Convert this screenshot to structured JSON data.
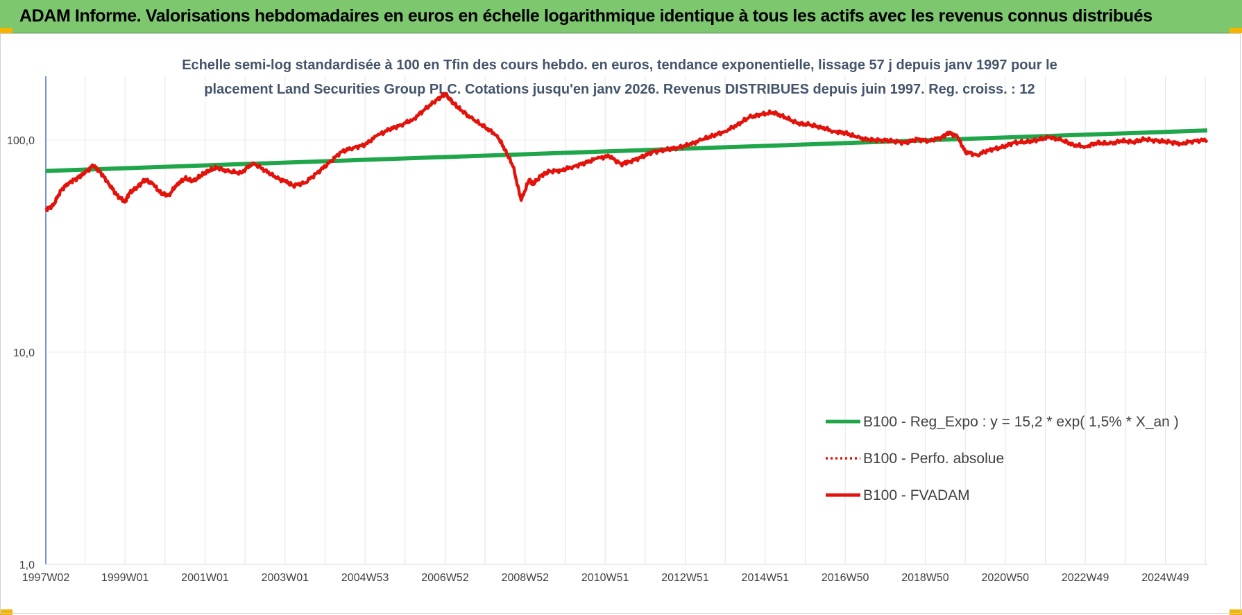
{
  "banner": {
    "title": "ADAM Informe. Valorisations hebdomadaires en euros en échelle logarithmique identique à tous les actifs avec les revenus connus distribués"
  },
  "colors": {
    "banner_bg": "#7dc76f",
    "corner_accent": "#f4b400",
    "trend_line": "#1fa64a",
    "series_line": "#e3120b",
    "subtitle": "#44546a"
  },
  "chart_data": {
    "type": "line",
    "title_lines": [
      "Echelle semi-log standardisée à 100 en Tfin des cours hebdo. en euros, tendance exponentielle, lissage 57 j depuis janv 1997 pour le",
      "placement Land Securities Group PLC. Cotations jusqu'en janv 2026. Revenus DISTRIBUES depuis juin 1997. Reg. croiss. : 12"
    ],
    "y_scale": "log",
    "ylim": [
      1,
      180
    ],
    "y_ticks": [
      {
        "value": 1,
        "label": "1,0"
      },
      {
        "value": 10,
        "label": "10,0"
      },
      {
        "value": 100,
        "label": "100,0"
      }
    ],
    "xlim": [
      1997.02,
      2026.05
    ],
    "x_ticks": [
      {
        "value": 1997.02,
        "label": "1997W02"
      },
      {
        "value": 1999.0,
        "label": "1999W01"
      },
      {
        "value": 2001.0,
        "label": "2001W01"
      },
      {
        "value": 2003.0,
        "label": "2003W01"
      },
      {
        "value": 2005.0,
        "label": "2004W53"
      },
      {
        "value": 2007.0,
        "label": "2006W52"
      },
      {
        "value": 2009.0,
        "label": "2008W52"
      },
      {
        "value": 2011.0,
        "label": "2010W51"
      },
      {
        "value": 2013.0,
        "label": "2012W51"
      },
      {
        "value": 2015.0,
        "label": "2014W51"
      },
      {
        "value": 2017.0,
        "label": "2016W50"
      },
      {
        "value": 2019.0,
        "label": "2018W50"
      },
      {
        "value": 2021.0,
        "label": "2020W50"
      },
      {
        "value": 2023.0,
        "label": "2022W49"
      },
      {
        "value": 2025.0,
        "label": "2024W49"
      }
    ],
    "grid": "vertical",
    "legend_position": "lower-right",
    "series": [
      {
        "name": "B100 - Reg_Expo : y = 15,2 * exp( 1,5% *  X_an )",
        "style": "solid-thick",
        "color": "#1fa64a",
        "x": [
          1997.02,
          2026.05
        ],
        "y": [
          71.5,
          111
        ]
      },
      {
        "name": "B100 - Perfo. absolue",
        "style": "dotted",
        "color": "#e3120b",
        "x": [],
        "y": []
      },
      {
        "name": "B100 - FVADAM",
        "style": "solid-thick",
        "color": "#e3120b",
        "x": [
          1997.02,
          1997.2,
          1997.4,
          1997.6,
          1997.8,
          1998.0,
          1998.2,
          1998.4,
          1998.6,
          1998.8,
          1999.0,
          1999.1,
          1999.3,
          1999.5,
          1999.7,
          1999.9,
          2000.1,
          2000.3,
          2000.5,
          2000.7,
          2000.9,
          2001.1,
          2001.3,
          2001.6,
          2001.9,
          2002.2,
          2002.5,
          2002.8,
          2003.0,
          2003.2,
          2003.5,
          2003.8,
          2004.1,
          2004.4,
          2004.7,
          2005.0,
          2005.3,
          2005.6,
          2005.9,
          2006.2,
          2006.5,
          2006.8,
          2007.0,
          2007.2,
          2007.4,
          2007.7,
          2008.0,
          2008.3,
          2008.5,
          2008.7,
          2008.9,
          2009.1,
          2009.2,
          2009.4,
          2009.6,
          2009.9,
          2010.2,
          2010.5,
          2010.8,
          2011.1,
          2011.4,
          2011.6,
          2011.9,
          2012.2,
          2012.5,
          2012.8,
          2013.1,
          2013.4,
          2013.7,
          2014.0,
          2014.3,
          2014.6,
          2014.9,
          2015.2,
          2015.5,
          2015.8,
          2016.1,
          2016.4,
          2016.7,
          2017.0,
          2017.3,
          2017.6,
          2017.9,
          2018.2,
          2018.5,
          2018.8,
          2019.1,
          2019.4,
          2019.6,
          2019.8,
          2020.0,
          2020.3,
          2020.6,
          2020.9,
          2021.2,
          2021.5,
          2021.8,
          2022.1,
          2022.4,
          2022.7,
          2023.0,
          2023.3,
          2023.6,
          2023.9,
          2024.2,
          2024.5,
          2024.8,
          2025.1,
          2025.4,
          2025.7,
          2026.05
        ],
        "y": [
          47,
          49,
          58,
          63,
          66,
          70,
          76,
          70,
          62,
          55,
          51,
          56,
          60,
          65,
          62,
          56,
          55,
          62,
          66,
          64,
          68,
          72,
          74,
          71,
          70,
          78,
          72,
          66,
          64,
          61,
          63,
          70,
          78,
          88,
          92,
          95,
          105,
          112,
          118,
          125,
          140,
          155,
          165,
          150,
          138,
          125,
          115,
          105,
          90,
          75,
          52,
          65,
          62,
          68,
          71,
          72,
          75,
          78,
          82,
          84,
          77,
          79,
          83,
          88,
          90,
          92,
          95,
          100,
          105,
          110,
          118,
          128,
          132,
          135,
          128,
          120,
          118,
          115,
          110,
          108,
          103,
          100,
          100,
          99,
          97,
          101,
          99,
          103,
          108,
          104,
          88,
          85,
          90,
          92,
          97,
          98,
          100,
          103,
          100,
          95,
          93,
          97,
          96,
          99,
          98,
          101,
          99,
          98,
          96,
          99,
          100
        ]
      }
    ]
  }
}
